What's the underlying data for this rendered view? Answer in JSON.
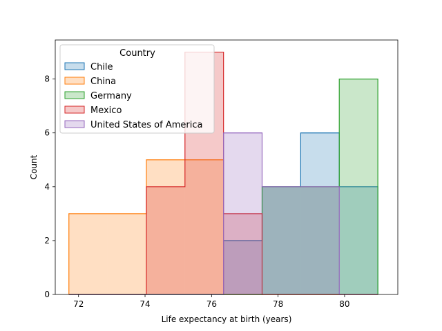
{
  "chart_data": {
    "type": "histogram",
    "title": "",
    "xlabel": "Life expectancy at birth (years)",
    "ylabel": "Count",
    "xlim": [
      71.3,
      81.6
    ],
    "ylim": [
      0,
      9.45
    ],
    "xticks": [
      72,
      74,
      76,
      78,
      80
    ],
    "yticks": [
      0,
      2,
      4,
      6,
      8
    ],
    "grid": false,
    "legend_title": "Country",
    "legend_position": "upper left",
    "bin_edges": [
      71.71,
      72.87,
      74.04,
      75.2,
      76.36,
      77.52,
      78.68,
      79.84,
      81.0
    ],
    "series": [
      {
        "name": "Chile",
        "color": "#1f77b4",
        "values": [
          0,
          0,
          0,
          0,
          2,
          4,
          6,
          4
        ]
      },
      {
        "name": "China",
        "color": "#ff7f0e",
        "values": [
          3,
          3,
          5,
          5,
          0,
          0,
          0,
          0
        ]
      },
      {
        "name": "Germany",
        "color": "#2ca02c",
        "values": [
          0,
          0,
          0,
          0,
          0,
          4,
          4,
          8
        ]
      },
      {
        "name": "Mexico",
        "color": "#d62728",
        "values": [
          0,
          0,
          4,
          9,
          3,
          0,
          0,
          0
        ]
      },
      {
        "name": "United States of America",
        "color": "#9467bd",
        "values": [
          0,
          0,
          0,
          0,
          6,
          4,
          4,
          0
        ]
      }
    ]
  }
}
